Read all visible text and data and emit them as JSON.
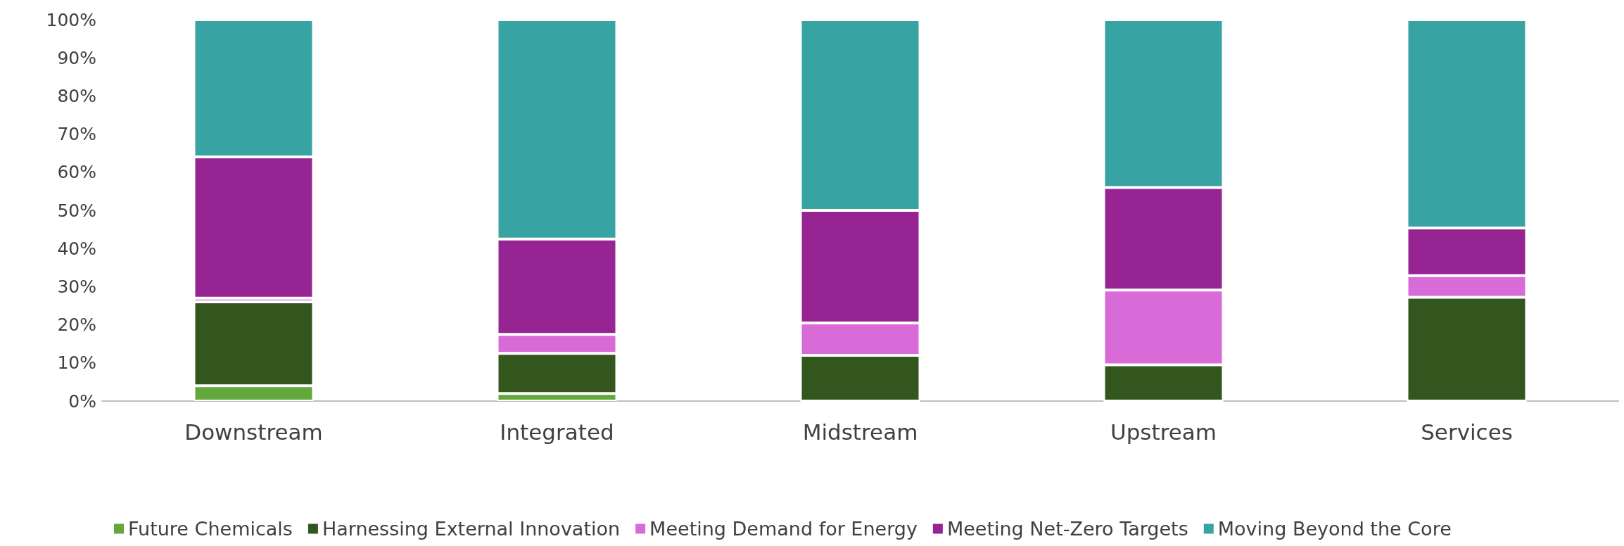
{
  "chart_data": {
    "type": "bar",
    "stacked": true,
    "categories": [
      "Downstream",
      "Integrated",
      "Midstream",
      "Upstream",
      "Services"
    ],
    "series": [
      {
        "name": "Future Chemicals",
        "color": "#62a83a",
        "values": [
          4,
          2,
          0,
          0,
          0
        ]
      },
      {
        "name": "Harnessing External Innovation",
        "color": "#33561f",
        "values": [
          22,
          10.5,
          12,
          9.5,
          27.2
        ]
      },
      {
        "name": "Meeting Demand for Energy",
        "color": "#d96bd9",
        "values": [
          1,
          5,
          8.5,
          19.6,
          5.7
        ]
      },
      {
        "name": "Meeting Net-Zero Targets",
        "color": "#962593",
        "values": [
          37,
          25,
          29.5,
          26.9,
          12.5
        ]
      },
      {
        "name": "Moving Beyond the Core",
        "color": "#38a3a3",
        "values": [
          36,
          57.5,
          50,
          44,
          54.6
        ]
      }
    ],
    "ylim": [
      0,
      100
    ],
    "yticks": [
      {
        "value": 0,
        "label": "0%"
      },
      {
        "value": 10,
        "label": "10%"
      },
      {
        "value": 20,
        "label": "20%"
      },
      {
        "value": 30,
        "label": "30%"
      },
      {
        "value": 40,
        "label": "40%"
      },
      {
        "value": 50,
        "label": "50%"
      },
      {
        "value": 60,
        "label": "60%"
      },
      {
        "value": 70,
        "label": "70%"
      },
      {
        "value": 80,
        "label": "80%"
      },
      {
        "value": 90,
        "label": "90%"
      },
      {
        "value": 100,
        "label": "100%"
      }
    ],
    "grid": false,
    "legend": "bottom"
  }
}
